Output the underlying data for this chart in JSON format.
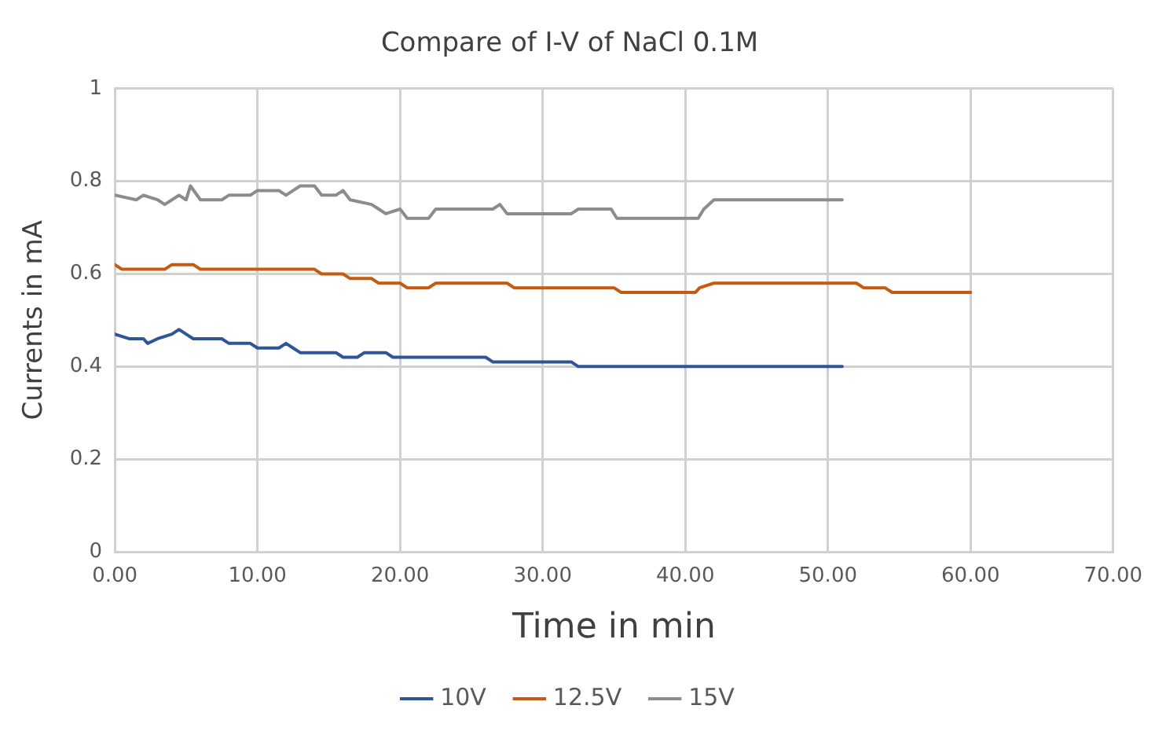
{
  "chart_data": {
    "type": "line",
    "title": "Compare of I-V of NaCl 0.1M",
    "xlabel": "Time in min",
    "ylabel": "Currents in mA",
    "xlim": [
      0,
      70
    ],
    "xticks": [
      {
        "value": 0,
        "label": "0.00"
      },
      {
        "value": 10,
        "label": "10.00"
      },
      {
        "value": 20,
        "label": "20.00"
      },
      {
        "value": 30,
        "label": "30.00"
      },
      {
        "value": 40,
        "label": "40.00"
      },
      {
        "value": 50,
        "label": "50.00"
      },
      {
        "value": 60,
        "label": "60.00"
      },
      {
        "value": 70,
        "label": "70.00"
      }
    ],
    "ylim": [
      0,
      1
    ],
    "yticks": [
      0,
      0.2,
      0.4,
      0.6,
      0.8,
      1
    ],
    "grid": true,
    "legend": "bottom",
    "marker": "none",
    "line_style": "solid",
    "series": [
      {
        "name": "10V",
        "color": "#2e5597",
        "x": [
          0,
          1,
          2,
          2.3,
          3,
          4,
          4.5,
          5,
          5.5,
          7.5,
          8,
          9.5,
          10,
          11.5,
          12,
          12.5,
          13,
          15.5,
          16,
          17,
          17.5,
          19,
          19.5,
          26,
          26.5,
          32,
          32.5,
          51
        ],
        "values": [
          0.47,
          0.46,
          0.46,
          0.45,
          0.46,
          0.47,
          0.48,
          0.47,
          0.46,
          0.46,
          0.45,
          0.45,
          0.44,
          0.44,
          0.45,
          0.44,
          0.43,
          0.43,
          0.42,
          0.42,
          0.43,
          0.43,
          0.42,
          0.42,
          0.41,
          0.41,
          0.4,
          0.4
        ]
      },
      {
        "name": "12.5V",
        "color": "#c55a11",
        "x": [
          0,
          0.5,
          3.5,
          4,
          5.5,
          6,
          14,
          14.5,
          16,
          16.5,
          18,
          18.5,
          20,
          20.5,
          22,
          22.5,
          27.5,
          28,
          35,
          35.5,
          40.7,
          41,
          42,
          52,
          52.5,
          54,
          54.5,
          60
        ],
        "values": [
          0.62,
          0.61,
          0.61,
          0.62,
          0.62,
          0.61,
          0.61,
          0.6,
          0.6,
          0.59,
          0.59,
          0.58,
          0.58,
          0.57,
          0.57,
          0.58,
          0.58,
          0.57,
          0.57,
          0.56,
          0.56,
          0.57,
          0.58,
          0.58,
          0.57,
          0.57,
          0.56,
          0.56
        ]
      },
      {
        "name": "15V",
        "color": "#8c8c8c",
        "x": [
          0,
          1.5,
          2,
          3,
          3.5,
          4,
          4.5,
          5,
          5.3,
          6,
          7.5,
          8,
          9.5,
          10,
          11.5,
          12,
          12.5,
          13,
          14,
          14.5,
          15.5,
          16,
          16.5,
          18,
          18.5,
          19,
          20,
          20.5,
          22,
          22.5,
          26.5,
          27,
          27.5,
          32,
          32.5,
          34.8,
          35.2,
          40.9,
          41.3,
          42,
          51
        ],
        "values": [
          0.77,
          0.76,
          0.77,
          0.76,
          0.75,
          0.76,
          0.77,
          0.76,
          0.79,
          0.76,
          0.76,
          0.77,
          0.77,
          0.78,
          0.78,
          0.77,
          0.78,
          0.79,
          0.79,
          0.77,
          0.77,
          0.78,
          0.76,
          0.75,
          0.74,
          0.73,
          0.74,
          0.72,
          0.72,
          0.74,
          0.74,
          0.75,
          0.73,
          0.73,
          0.74,
          0.74,
          0.72,
          0.72,
          0.74,
          0.76,
          0.76
        ]
      }
    ]
  }
}
